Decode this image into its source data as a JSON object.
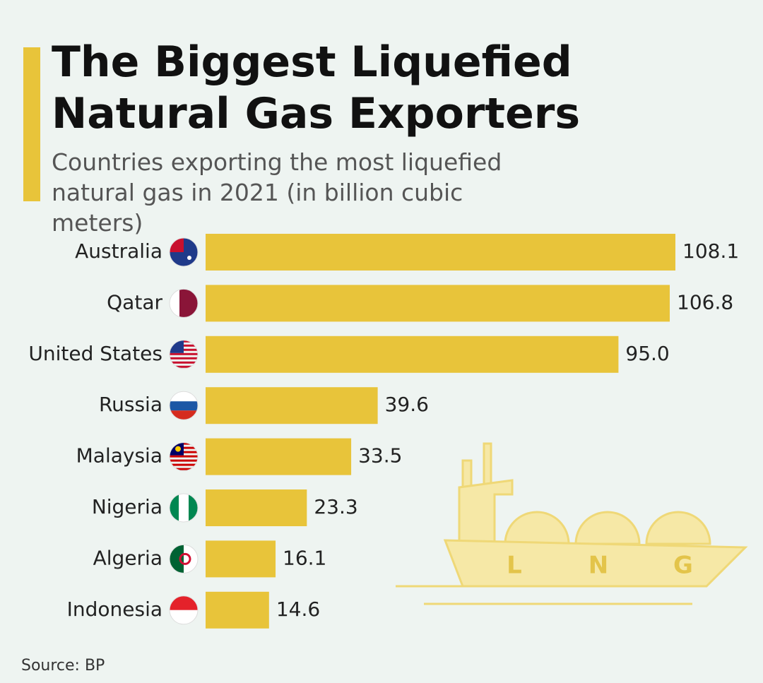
{
  "chart_data": {
    "type": "bar",
    "orientation": "horizontal",
    "title": "The Biggest Liquefied Natural Gas Exporters",
    "subtitle": "Countries exporting the most liquefied natural gas in 2021 (in billion cubic meters)",
    "categories": [
      "Australia",
      "Qatar",
      "United States",
      "Russia",
      "Malaysia",
      "Nigeria",
      "Algeria",
      "Indonesia"
    ],
    "values": [
      108.1,
      106.8,
      95.0,
      39.6,
      33.5,
      23.3,
      16.1,
      14.6
    ],
    "value_labels": [
      "108.1",
      "106.8",
      "95.0",
      "39.6",
      "33.5",
      "23.3",
      "16.1",
      "14.6"
    ],
    "color": "#e8c43a",
    "source": "Source: BP",
    "illustration_text": [
      "L",
      "N",
      "G"
    ]
  }
}
